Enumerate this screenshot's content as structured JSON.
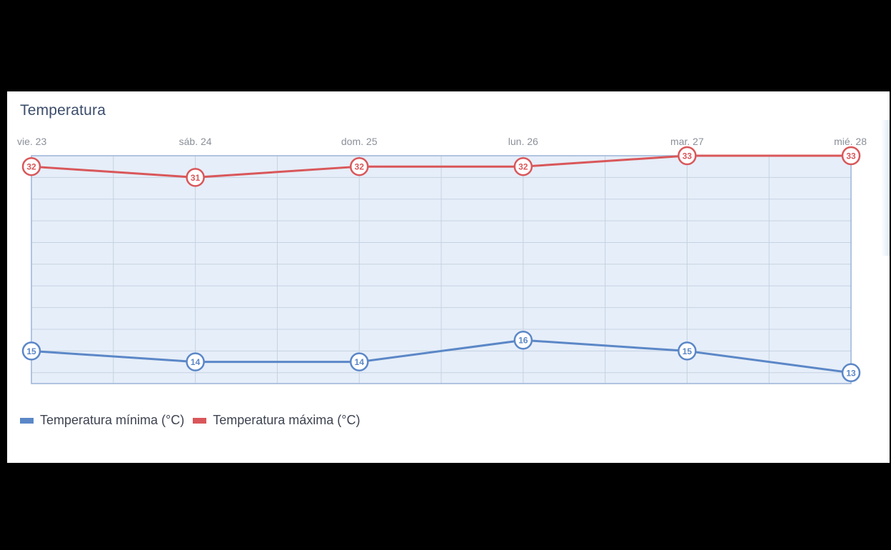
{
  "chart_data": {
    "type": "line",
    "title": "Temperatura",
    "categories": [
      "vie. 23",
      "sáb. 24",
      "dom. 25",
      "lun. 26",
      "mar. 27",
      "mié. 28"
    ],
    "series": [
      {
        "name": "Temperatura mínima (°C)",
        "values": [
          15,
          14,
          14,
          16,
          15,
          13
        ],
        "color": "#5b87c7"
      },
      {
        "name": "Temperatura máxima (°C)",
        "values": [
          32,
          31,
          32,
          32,
          33,
          33
        ],
        "color": "#d9575a"
      }
    ],
    "ylim": [
      12,
      33
    ],
    "grid": true,
    "legend_position": "bottom-left"
  },
  "colors": {
    "plot_fill": "#e6eef9",
    "plot_border": "#9bb4d8",
    "grid": "#c6d2e2",
    "axis_text": "#8a8f98",
    "marker_fill": "#ffffff"
  }
}
